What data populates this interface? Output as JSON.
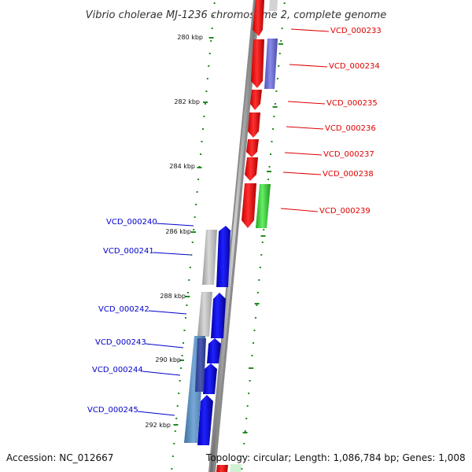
{
  "title": "Vibrio cholerae MJ-1236 chromosome 2, complete genome",
  "footer": {
    "accession": "Accession: NC_012667",
    "stats": "Topology: circular; Length: 1,086,784 bp; Genes: 1,008"
  },
  "colors": {
    "forward_label": "#dd0000",
    "reverse_label": "#0000cc",
    "tick": "#228b22",
    "backbone": "#808080"
  },
  "ticks": [
    "280 kbp",
    "282 kbp",
    "284 kbp",
    "286 kbp",
    "288 kbp",
    "290 kbp",
    "292 kbp"
  ],
  "forward_genes": [
    "VCD_000233",
    "VCD_000234",
    "VCD_000235",
    "VCD_000236",
    "VCD_000237",
    "VCD_000238",
    "VCD_000239"
  ],
  "reverse_genes": [
    "VCD_000240",
    "VCD_000241",
    "VCD_000242",
    "VCD_000243",
    "VCD_000244",
    "VCD_000245"
  ]
}
